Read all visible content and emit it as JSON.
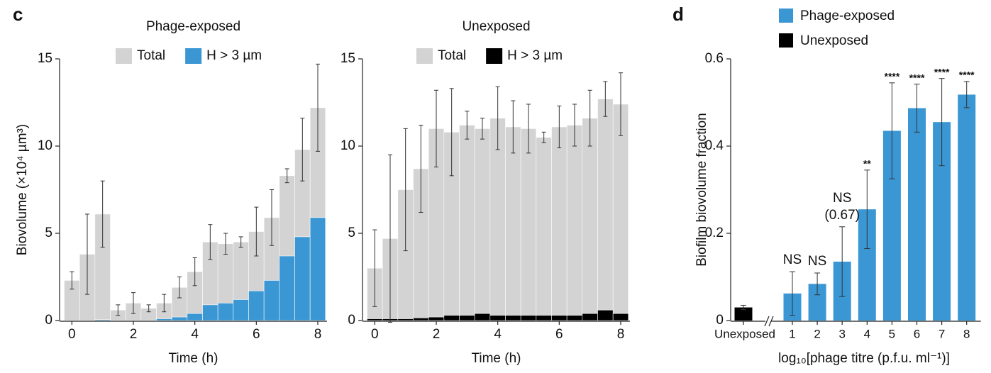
{
  "chart_data": [
    {
      "type": "bar",
      "panel": "c",
      "title": "Phage-exposed",
      "x_label": "Time (h)",
      "y_label": "Biovolume (×10⁴ µm³)",
      "x": [
        0,
        0.5,
        1,
        1.5,
        2,
        2.5,
        3,
        3.5,
        4,
        4.5,
        5,
        5.5,
        6,
        6.5,
        7,
        7.5,
        8
      ],
      "series": [
        {
          "name": "Total",
          "color": "#d3d3d3",
          "values": [
            2.3,
            3.8,
            6.1,
            0.6,
            1.0,
            0.7,
            1.0,
            1.9,
            2.8,
            4.5,
            4.4,
            4.5,
            5.1,
            5.9,
            8.3,
            9.8,
            12.2
          ],
          "errors": [
            0.5,
            2.3,
            1.9,
            0.3,
            0.6,
            0.2,
            0.5,
            0.6,
            0.8,
            1.0,
            0.6,
            0.3,
            1.4,
            1.6,
            0.4,
            1.8,
            2.5
          ]
        },
        {
          "name": "H > 3 µm",
          "color": "#3a97d4",
          "values": [
            0,
            0,
            0.05,
            0,
            0,
            0,
            0.1,
            0.2,
            0.4,
            0.9,
            1.0,
            1.2,
            1.7,
            2.3,
            3.7,
            4.8,
            5.9
          ]
        }
      ],
      "xlim": [
        -0.4,
        8.3
      ],
      "xticks": [
        0,
        2,
        4,
        6,
        8
      ],
      "ylim": [
        0,
        15
      ],
      "yticks": [
        0,
        5,
        10,
        15
      ]
    },
    {
      "type": "bar",
      "title": "Unexposed",
      "x_label": "Time (h)",
      "x": [
        0,
        0.5,
        1,
        1.5,
        2,
        2.5,
        3,
        3.5,
        4,
        4.5,
        5,
        5.5,
        6,
        6.5,
        7,
        7.5,
        8
      ],
      "series": [
        {
          "name": "Total",
          "color": "#d3d3d3",
          "values": [
            3.0,
            4.7,
            7.5,
            8.7,
            11.0,
            10.8,
            11.2,
            11.0,
            11.6,
            11.1,
            11.0,
            10.5,
            11.1,
            11.2,
            11.6,
            12.7,
            12.4
          ],
          "errors": [
            2.2,
            4.8,
            3.5,
            2.5,
            2.2,
            2.5,
            0.8,
            0.6,
            1.8,
            1.5,
            1.4,
            0.3,
            1.2,
            1.2,
            1.6,
            1.0,
            1.8
          ]
        },
        {
          "name": "H > 3 µm",
          "color": "#000000",
          "values": [
            0.1,
            0.1,
            0.1,
            0.15,
            0.2,
            0.3,
            0.3,
            0.4,
            0.3,
            0.3,
            0.3,
            0.3,
            0.3,
            0.3,
            0.4,
            0.6,
            0.4
          ]
        }
      ],
      "xlim": [
        -0.4,
        8.3
      ],
      "xticks": [
        0,
        2,
        4,
        6,
        8
      ],
      "ylim": [
        0,
        15
      ],
      "yticks": [
        0,
        5,
        10,
        15
      ]
    },
    {
      "type": "category-bar",
      "panel": "d",
      "x_label": "log₁₀[phage titre (p.f.u. ml⁻¹)]",
      "y_label": "Biofilm biovolume fraction",
      "categories": [
        "Unexposed",
        "1",
        "2",
        "3",
        "4",
        "5",
        "6",
        "7",
        "8"
      ],
      "series": [
        {
          "name": "Phage-exposed",
          "color": "#3a97d4",
          "values": [
            null,
            0.062,
            0.084,
            0.135,
            0.255,
            0.435,
            0.487,
            0.455,
            0.518
          ],
          "errors": [
            null,
            0.05,
            0.025,
            0.08,
            0.09,
            0.11,
            0.055,
            0.1,
            0.03
          ]
        },
        {
          "name": "Unexposed",
          "color": "#000000",
          "values": [
            0.03,
            null,
            null,
            null,
            null,
            null,
            null,
            null,
            null
          ],
          "errors": [
            0.005,
            null,
            null,
            null,
            null,
            null,
            null,
            null,
            null
          ]
        }
      ],
      "annotations": [
        {
          "category": "1",
          "text": [
            "NS"
          ]
        },
        {
          "category": "2",
          "text": [
            "NS"
          ]
        },
        {
          "category": "3",
          "text": [
            "NS",
            "(0.67)"
          ]
        },
        {
          "category": "4",
          "text": [
            "**"
          ]
        },
        {
          "category": "5",
          "text": [
            "****"
          ]
        },
        {
          "category": "6",
          "text": [
            "****"
          ]
        },
        {
          "category": "7",
          "text": [
            "****"
          ]
        },
        {
          "category": "8",
          "text": [
            "****"
          ]
        }
      ],
      "ylim": [
        0,
        0.6
      ],
      "yticks": [
        0,
        0.2,
        0.4,
        0.6
      ]
    }
  ]
}
